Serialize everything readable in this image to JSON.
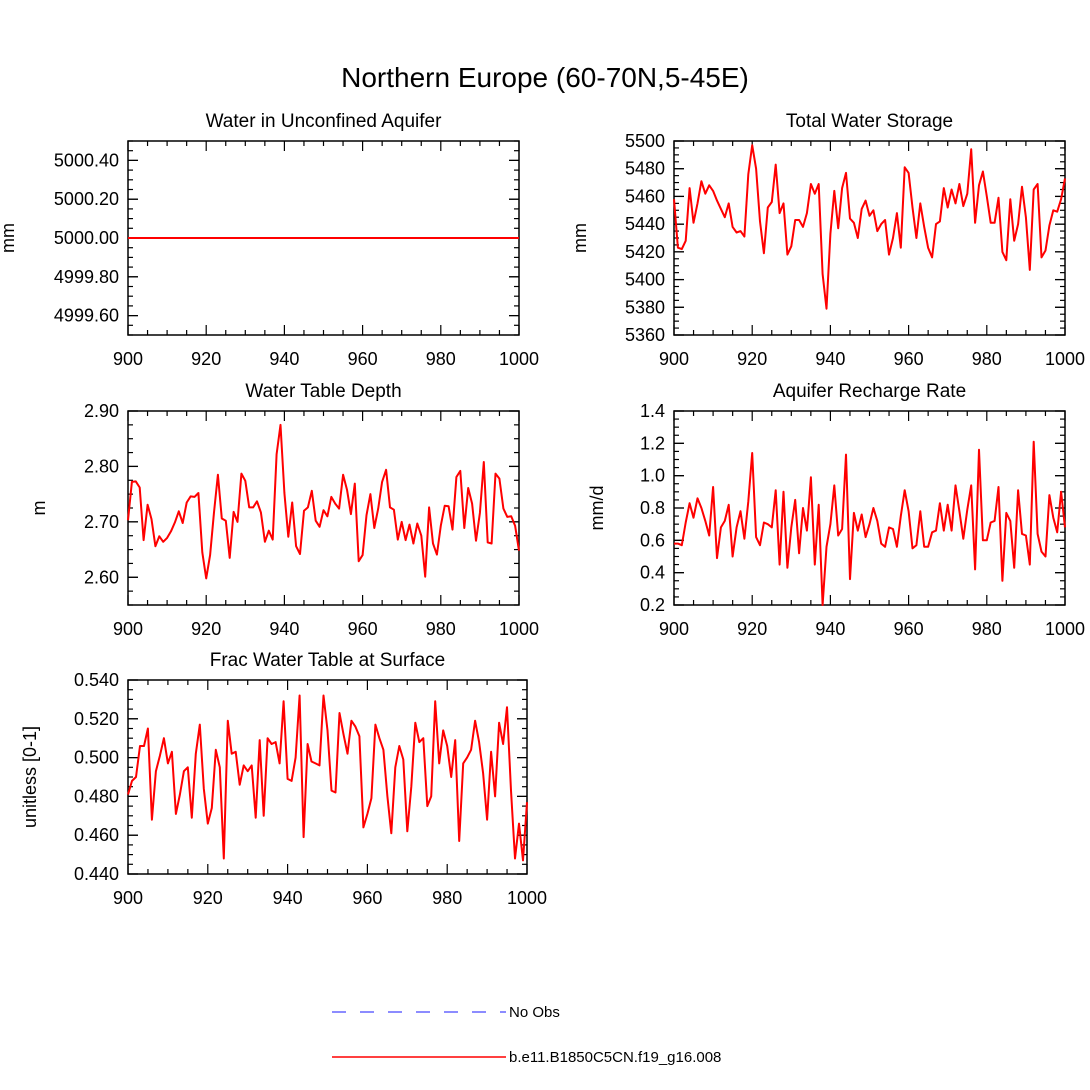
{
  "title": "Northern Europe (60-70N,5-45E)",
  "colors": {
    "model": "#ff0000",
    "obs": "#6666ff",
    "axis": "#000000"
  },
  "legend": {
    "entries": [
      {
        "label": "No Obs",
        "style": "dashed",
        "color": "#6666ff"
      },
      {
        "label": "b.e11.B1850C5CN.f19_g16.008",
        "style": "solid",
        "color": "#ff0000"
      }
    ]
  },
  "chart_data": [
    {
      "type": "line",
      "title": "Water in Unconfined Aquifer",
      "xlabel": "",
      "ylabel": "mm",
      "xlim": [
        900,
        1000
      ],
      "ylim": [
        4999.5,
        5000.5
      ],
      "xticks": [
        900,
        920,
        940,
        960,
        980,
        1000
      ],
      "xtick_labels": [
        "900",
        "920",
        "940",
        "960",
        "980",
        "1000"
      ],
      "yticks": [
        4999.6,
        4999.8,
        5000.0,
        5000.2,
        5000.4
      ],
      "ytick_labels": [
        "4999.60",
        "4999.80",
        "5000.00",
        "5000.20",
        "5000.40"
      ],
      "x_start": 900,
      "series": [
        {
          "name": "b.e11.B1850C5CN.f19_g16.008",
          "values": [
            5000,
            5000
          ]
        }
      ],
      "x_values": [
        900,
        1000
      ]
    },
    {
      "type": "line",
      "title": "Total Water Storage",
      "xlabel": "",
      "ylabel": "mm",
      "xlim": [
        900,
        1000
      ],
      "ylim": [
        5360,
        5500
      ],
      "xticks": [
        900,
        920,
        940,
        960,
        980,
        1000
      ],
      "xtick_labels": [
        "900",
        "920",
        "940",
        "960",
        "980",
        "1000"
      ],
      "yticks": [
        5360,
        5380,
        5400,
        5420,
        5440,
        5460,
        5480,
        5500
      ],
      "ytick_labels": [
        "5360",
        "5380",
        "5400",
        "5420",
        "5440",
        "5460",
        "5480",
        "5500"
      ],
      "x_start": 900,
      "series": [
        {
          "name": "b.e11.B1850C5CN.f19_g16.008",
          "values": [
            5458,
            5423,
            5422,
            5428,
            5466,
            5441,
            5455,
            5471,
            5462,
            5468,
            5464,
            5457,
            5451,
            5445,
            5455,
            5438,
            5434,
            5435,
            5431,
            5476,
            5497,
            5480,
            5442,
            5419,
            5452,
            5456,
            5483,
            5448,
            5455,
            5418,
            5424,
            5443,
            5443,
            5438,
            5448,
            5469,
            5462,
            5469,
            5404,
            5379,
            5433,
            5464,
            5437,
            5466,
            5477,
            5444,
            5441,
            5430,
            5451,
            5457,
            5446,
            5450,
            5435,
            5440,
            5443,
            5418,
            5430,
            5448,
            5423,
            5481,
            5477,
            5452,
            5430,
            5455,
            5438,
            5423,
            5416,
            5440,
            5442,
            5466,
            5452,
            5465,
            5455,
            5469,
            5453,
            5462,
            5494,
            5441,
            5468,
            5478,
            5460,
            5441,
            5441,
            5459,
            5420,
            5414,
            5458,
            5428,
            5440,
            5467,
            5445,
            5407,
            5465,
            5469,
            5416,
            5421,
            5439,
            5450,
            5449,
            5458,
            5473
          ]
        }
      ]
    },
    {
      "type": "line",
      "title": "Water Table Depth",
      "xlabel": "",
      "ylabel": "m",
      "xlim": [
        900,
        1000
      ],
      "ylim": [
        2.55,
        2.9
      ],
      "xticks": [
        900,
        920,
        940,
        960,
        980,
        1000
      ],
      "xtick_labels": [
        "900",
        "920",
        "940",
        "960",
        "980",
        "1000"
      ],
      "yticks": [
        2.6,
        2.7,
        2.8,
        2.9
      ],
      "ytick_labels": [
        "2.60",
        "2.70",
        "2.80",
        "2.90"
      ],
      "x_start": 900,
      "series": [
        {
          "name": "b.e11.B1850C5CN.f19_g16.008",
          "values": [
            2.703,
            2.772,
            2.773,
            2.762,
            2.667,
            2.731,
            2.705,
            2.656,
            2.674,
            2.664,
            2.671,
            2.683,
            2.699,
            2.719,
            2.698,
            2.735,
            2.746,
            2.745,
            2.752,
            2.645,
            2.598,
            2.64,
            2.717,
            2.785,
            2.706,
            2.702,
            2.635,
            2.718,
            2.7,
            2.787,
            2.774,
            2.726,
            2.726,
            2.737,
            2.717,
            2.664,
            2.684,
            2.668,
            2.822,
            2.875,
            2.752,
            2.673,
            2.735,
            2.656,
            2.642,
            2.72,
            2.726,
            2.756,
            2.702,
            2.691,
            2.721,
            2.71,
            2.745,
            2.733,
            2.724,
            2.785,
            2.758,
            2.714,
            2.769,
            2.629,
            2.64,
            2.712,
            2.75,
            2.689,
            2.724,
            2.772,
            2.794,
            2.726,
            2.722,
            2.668,
            2.7,
            2.667,
            2.695,
            2.661,
            2.697,
            2.675,
            2.601,
            2.726,
            2.661,
            2.641,
            2.693,
            2.729,
            2.728,
            2.686,
            2.781,
            2.792,
            2.689,
            2.761,
            2.733,
            2.666,
            2.716,
            2.808,
            2.663,
            2.661,
            2.787,
            2.778,
            2.724,
            2.709,
            2.71,
            2.693,
            2.648
          ]
        }
      ]
    },
    {
      "type": "line",
      "title": "Aquifer Recharge Rate",
      "xlabel": "",
      "ylabel": "mm/d",
      "xlim": [
        900,
        1000
      ],
      "ylim": [
        0.2,
        1.4
      ],
      "xticks": [
        900,
        920,
        940,
        960,
        980,
        1000
      ],
      "xtick_labels": [
        "900",
        "920",
        "940",
        "960",
        "980",
        "1000"
      ],
      "yticks": [
        0.2,
        0.4,
        0.6,
        0.8,
        1.0,
        1.2,
        1.4
      ],
      "ytick_labels": [
        "0.2",
        "0.4",
        "0.6",
        "0.8",
        "1.0",
        "1.2",
        "1.4"
      ],
      "x_start": 900,
      "series": [
        {
          "name": "b.e11.B1850C5CN.f19_g16.008",
          "values": [
            0.58,
            0.58,
            0.57,
            0.71,
            0.83,
            0.74,
            0.86,
            0.8,
            0.72,
            0.63,
            0.93,
            0.49,
            0.68,
            0.72,
            0.82,
            0.5,
            0.68,
            0.78,
            0.61,
            0.84,
            1.14,
            0.62,
            0.57,
            0.71,
            0.7,
            0.68,
            0.91,
            0.45,
            0.9,
            0.43,
            0.68,
            0.85,
            0.52,
            0.8,
            0.66,
            0.99,
            0.45,
            0.82,
            0.2,
            0.56,
            0.7,
            0.94,
            0.63,
            0.67,
            1.13,
            0.36,
            0.77,
            0.66,
            0.76,
            0.62,
            0.7,
            0.8,
            0.72,
            0.58,
            0.56,
            0.68,
            0.67,
            0.56,
            0.75,
            0.91,
            0.78,
            0.55,
            0.57,
            0.78,
            0.56,
            0.56,
            0.65,
            0.66,
            0.83,
            0.66,
            0.82,
            0.66,
            0.94,
            0.78,
            0.61,
            0.79,
            0.94,
            0.42,
            1.16,
            0.6,
            0.6,
            0.71,
            0.72,
            0.93,
            0.35,
            0.77,
            0.72,
            0.43,
            0.91,
            0.64,
            0.63,
            0.45,
            1.21,
            0.64,
            0.53,
            0.5,
            0.88,
            0.74,
            0.65,
            0.9,
            0.68
          ]
        }
      ]
    },
    {
      "type": "line",
      "title": "Frac Water Table at Surface",
      "xlabel": "",
      "ylabel": "unitless [0-1]",
      "xlim": [
        900,
        1000
      ],
      "ylim": [
        0.44,
        0.54
      ],
      "xticks": [
        900,
        920,
        940,
        960,
        980,
        1000
      ],
      "xtick_labels": [
        "900",
        "920",
        "940",
        "960",
        "980",
        "1000"
      ],
      "yticks": [
        0.44,
        0.46,
        0.48,
        0.5,
        0.52,
        0.54
      ],
      "ytick_labels": [
        "0.440",
        "0.460",
        "0.480",
        "0.500",
        "0.520",
        "0.540"
      ],
      "x_start": 900,
      "series": [
        {
          "name": "b.e11.B1850C5CN.f19_g16.008",
          "values": [
            0.481,
            0.488,
            0.49,
            0.506,
            0.506,
            0.515,
            0.468,
            0.493,
            0.501,
            0.51,
            0.497,
            0.503,
            0.471,
            0.481,
            0.493,
            0.495,
            0.469,
            0.502,
            0.517,
            0.484,
            0.466,
            0.474,
            0.504,
            0.495,
            0.448,
            0.519,
            0.502,
            0.503,
            0.486,
            0.496,
            0.493,
            0.496,
            0.469,
            0.509,
            0.47,
            0.51,
            0.507,
            0.508,
            0.497,
            0.529,
            0.489,
            0.488,
            0.5,
            0.532,
            0.459,
            0.507,
            0.498,
            0.497,
            0.496,
            0.532,
            0.514,
            0.483,
            0.482,
            0.523,
            0.512,
            0.502,
            0.519,
            0.516,
            0.511,
            0.464,
            0.471,
            0.479,
            0.517,
            0.51,
            0.504,
            0.48,
            0.461,
            0.495,
            0.506,
            0.499,
            0.462,
            0.485,
            0.518,
            0.508,
            0.51,
            0.475,
            0.48,
            0.529,
            0.497,
            0.514,
            0.506,
            0.49,
            0.509,
            0.457,
            0.497,
            0.5,
            0.504,
            0.519,
            0.508,
            0.492,
            0.468,
            0.503,
            0.48,
            0.518,
            0.507,
            0.526,
            0.483,
            0.448,
            0.466,
            0.447,
            0.477
          ]
        }
      ]
    }
  ]
}
